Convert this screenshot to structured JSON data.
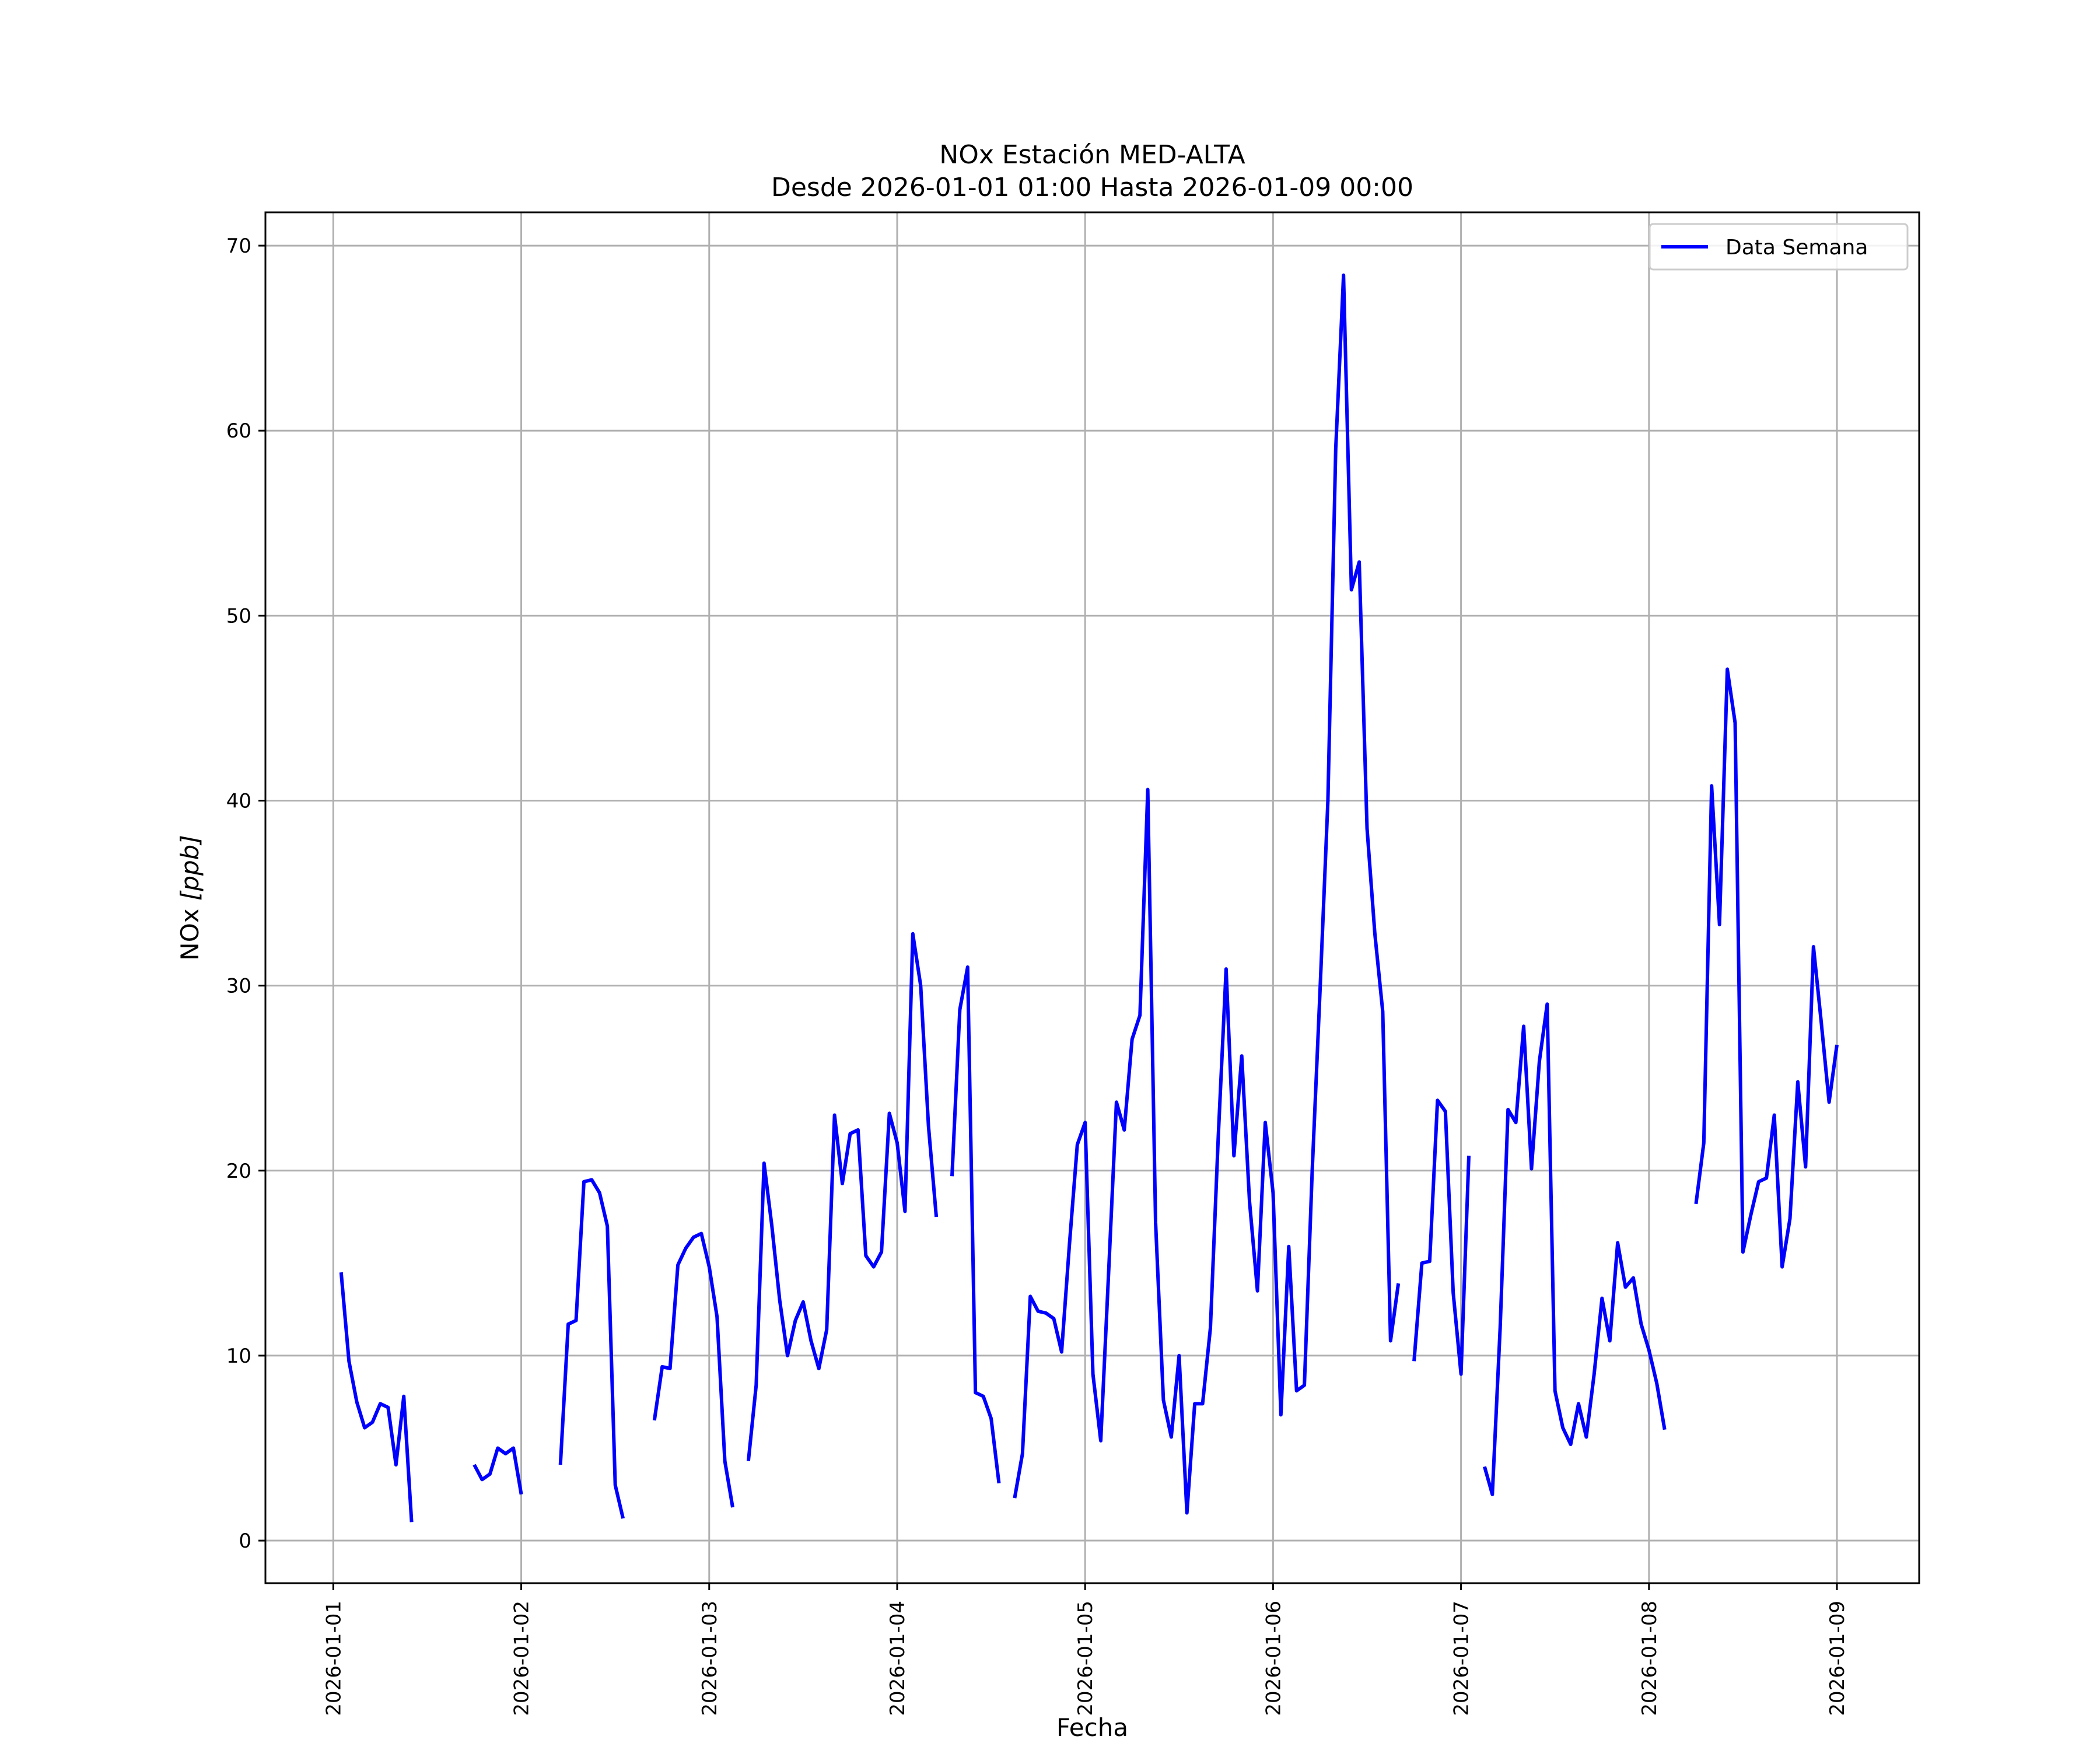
{
  "chart_data": {
    "type": "line",
    "title": "NOx Estación MED-ALTA",
    "subtitle": "Desde 2026-01-01 01:00 Hasta 2026-01-09 00:00",
    "xlabel": "Fecha",
    "ylabel_main": "NOx ",
    "ylabel_unit": "[ppb]",
    "x_ticks": [
      "2026-01-01",
      "2026-01-02",
      "2026-01-03",
      "2026-01-04",
      "2026-01-05",
      "2026-01-06",
      "2026-01-07",
      "2026-01-08",
      "2026-01-09"
    ],
    "y_ticks": [
      "0",
      "10",
      "20",
      "30",
      "40",
      "50",
      "60",
      "70"
    ],
    "xlim": [
      "2025-12-31 15:20",
      "2026-01-09 10:30"
    ],
    "ylim": [
      -2.3,
      71.8
    ],
    "grid": true,
    "legend_position": "top-right",
    "series": [
      {
        "name": "Data Semana",
        "color": "#0000ff",
        "points": [
          [
            "2026-01-01 01:00",
            14.5
          ],
          [
            "2026-01-01 02:00",
            9.7
          ],
          [
            "2026-01-01 03:00",
            7.5
          ],
          [
            "2026-01-01 04:00",
            6.1
          ],
          [
            "2026-01-01 05:00",
            6.4
          ],
          [
            "2026-01-01 06:00",
            7.4
          ],
          [
            "2026-01-01 07:00",
            7.2
          ],
          [
            "2026-01-01 08:00",
            4.1
          ],
          [
            "2026-01-01 09:00",
            7.8
          ],
          [
            "2026-01-01 10:00",
            1.0
          ],
          [
            "2026-01-01 18:00",
            4.1
          ],
          [
            "2026-01-01 19:00",
            3.3
          ],
          [
            "2026-01-01 20:00",
            3.6
          ],
          [
            "2026-01-01 21:00",
            5.0
          ],
          [
            "2026-01-01 22:00",
            4.7
          ],
          [
            "2026-01-01 23:00",
            5.0
          ],
          [
            "2026-01-02 00:00",
            2.5
          ],
          [
            "2026-01-02 05:00",
            4.1
          ],
          [
            "2026-01-02 06:00",
            11.7
          ],
          [
            "2026-01-02 07:00",
            11.9
          ],
          [
            "2026-01-02 08:00",
            19.4
          ],
          [
            "2026-01-02 09:00",
            19.5
          ],
          [
            "2026-01-02 10:00",
            18.8
          ],
          [
            "2026-01-02 11:00",
            17.0
          ],
          [
            "2026-01-02 12:00",
            3.0
          ],
          [
            "2026-01-02 13:00",
            1.2
          ],
          [
            "2026-01-02 17:00",
            6.5
          ],
          [
            "2026-01-02 18:00",
            9.4
          ],
          [
            "2026-01-02 19:00",
            9.3
          ],
          [
            "2026-01-02 20:00",
            14.9
          ],
          [
            "2026-01-02 21:00",
            15.8
          ],
          [
            "2026-01-02 22:00",
            16.4
          ],
          [
            "2026-01-02 23:00",
            16.6
          ],
          [
            "2026-01-03 00:00",
            14.8
          ],
          [
            "2026-01-03 01:00",
            12.1
          ],
          [
            "2026-01-03 02:00",
            4.3
          ],
          [
            "2026-01-03 03:00",
            1.8
          ],
          [
            "2026-01-03 05:00",
            4.3
          ],
          [
            "2026-01-03 06:00",
            8.4
          ],
          [
            "2026-01-03 07:00",
            20.4
          ],
          [
            "2026-01-03 08:00",
            17.0
          ],
          [
            "2026-01-03 09:00",
            13.0
          ],
          [
            "2026-01-03 10:00",
            10.0
          ],
          [
            "2026-01-03 11:00",
            11.9
          ],
          [
            "2026-01-03 12:00",
            12.9
          ],
          [
            "2026-01-03 13:00",
            10.8
          ],
          [
            "2026-01-03 14:00",
            9.3
          ],
          [
            "2026-01-03 15:00",
            11.4
          ],
          [
            "2026-01-03 16:00",
            23.0
          ],
          [
            "2026-01-03 17:00",
            19.3
          ],
          [
            "2026-01-03 18:00",
            22.0
          ],
          [
            "2026-01-03 19:00",
            22.2
          ],
          [
            "2026-01-03 20:00",
            15.4
          ],
          [
            "2026-01-03 21:00",
            14.8
          ],
          [
            "2026-01-03 22:00",
            15.6
          ],
          [
            "2026-01-03 23:00",
            23.1
          ],
          [
            "2026-01-04 00:00",
            21.5
          ],
          [
            "2026-01-04 01:00",
            17.8
          ],
          [
            "2026-01-04 02:00",
            32.8
          ],
          [
            "2026-01-04 03:00",
            30.0
          ],
          [
            "2026-01-04 04:00",
            22.4
          ],
          [
            "2026-01-04 05:00",
            17.5
          ],
          [
            "2026-01-04 07:00",
            19.7
          ],
          [
            "2026-01-04 08:00",
            28.7
          ],
          [
            "2026-01-04 09:00",
            31.0
          ],
          [
            "2026-01-04 10:00",
            8.0
          ],
          [
            "2026-01-04 11:00",
            7.8
          ],
          [
            "2026-01-04 12:00",
            6.6
          ],
          [
            "2026-01-04 13:00",
            3.1
          ],
          [
            "2026-01-04 15:00",
            2.3
          ],
          [
            "2026-01-04 16:00",
            4.7
          ],
          [
            "2026-01-04 17:00",
            13.2
          ],
          [
            "2026-01-04 18:00",
            12.4
          ],
          [
            "2026-01-04 19:00",
            12.3
          ],
          [
            "2026-01-04 20:00",
            12.0
          ],
          [
            "2026-01-04 21:00",
            10.2
          ],
          [
            "2026-01-04 22:00",
            16.0
          ],
          [
            "2026-01-04 23:00",
            21.4
          ],
          [
            "2026-01-05 00:00",
            22.6
          ],
          [
            "2026-01-05 01:00",
            9.0
          ],
          [
            "2026-01-05 02:00",
            5.4
          ],
          [
            "2026-01-05 03:00",
            14.5
          ],
          [
            "2026-01-05 04:00",
            23.7
          ],
          [
            "2026-01-05 05:00",
            22.2
          ],
          [
            "2026-01-05 06:00",
            27.1
          ],
          [
            "2026-01-05 07:00",
            28.4
          ],
          [
            "2026-01-05 08:00",
            40.6
          ],
          [
            "2026-01-05 09:00",
            17.2
          ],
          [
            "2026-01-05 10:00",
            7.6
          ],
          [
            "2026-01-05 11:00",
            5.6
          ],
          [
            "2026-01-05 12:00",
            10.0
          ],
          [
            "2026-01-05 13:00",
            1.5
          ],
          [
            "2026-01-05 14:00",
            7.4
          ],
          [
            "2026-01-05 15:00",
            7.4
          ],
          [
            "2026-01-05 16:00",
            11.5
          ],
          [
            "2026-01-05 17:00",
            21.8
          ],
          [
            "2026-01-05 18:00",
            30.9
          ],
          [
            "2026-01-05 19:00",
            20.8
          ],
          [
            "2026-01-05 20:00",
            26.2
          ],
          [
            "2026-01-05 21:00",
            18.3
          ],
          [
            "2026-01-05 22:00",
            13.5
          ],
          [
            "2026-01-05 23:00",
            22.6
          ],
          [
            "2026-01-06 00:00",
            18.8
          ],
          [
            "2026-01-06 01:00",
            6.8
          ],
          [
            "2026-01-06 02:00",
            15.9
          ],
          [
            "2026-01-06 03:00",
            8.1
          ],
          [
            "2026-01-06 04:00",
            8.4
          ],
          [
            "2026-01-06 05:00",
            20.0
          ],
          [
            "2026-01-06 06:00",
            29.8
          ],
          [
            "2026-01-06 07:00",
            40.0
          ],
          [
            "2026-01-06 08:00",
            59.0
          ],
          [
            "2026-01-06 09:00",
            68.4
          ],
          [
            "2026-01-06 10:00",
            51.4
          ],
          [
            "2026-01-06 11:00",
            52.9
          ],
          [
            "2026-01-06 12:00",
            38.5
          ],
          [
            "2026-01-06 13:00",
            32.8
          ],
          [
            "2026-01-06 14:00",
            28.6
          ],
          [
            "2026-01-06 15:00",
            10.8
          ],
          [
            "2026-01-06 16:00",
            13.9
          ],
          [
            "2026-01-06 18:00",
            9.7
          ],
          [
            "2026-01-06 19:00",
            15.0
          ],
          [
            "2026-01-06 20:00",
            15.1
          ],
          [
            "2026-01-06 21:00",
            23.8
          ],
          [
            "2026-01-06 22:00",
            23.2
          ],
          [
            "2026-01-06 23:00",
            13.4
          ],
          [
            "2026-01-07 00:00",
            9.0
          ],
          [
            "2026-01-07 01:00",
            20.8
          ],
          [
            "2026-01-07 03:00",
            4.0
          ],
          [
            "2026-01-07 04:00",
            2.5
          ],
          [
            "2026-01-07 05:00",
            11.5
          ],
          [
            "2026-01-07 06:00",
            23.3
          ],
          [
            "2026-01-07 07:00",
            22.6
          ],
          [
            "2026-01-07 08:00",
            27.8
          ],
          [
            "2026-01-07 09:00",
            20.1
          ],
          [
            "2026-01-07 10:00",
            25.9
          ],
          [
            "2026-01-07 11:00",
            29.0
          ],
          [
            "2026-01-07 12:00",
            8.1
          ],
          [
            "2026-01-07 13:00",
            6.1
          ],
          [
            "2026-01-07 14:00",
            5.2
          ],
          [
            "2026-01-07 15:00",
            7.4
          ],
          [
            "2026-01-07 16:00",
            5.6
          ],
          [
            "2026-01-07 17:00",
            9.0
          ],
          [
            "2026-01-07 18:00",
            13.1
          ],
          [
            "2026-01-07 19:00",
            10.8
          ],
          [
            "2026-01-07 20:00",
            16.1
          ],
          [
            "2026-01-07 21:00",
            13.7
          ],
          [
            "2026-01-07 22:00",
            14.2
          ],
          [
            "2026-01-07 23:00",
            11.7
          ],
          [
            "2026-01-08 00:00",
            10.3
          ],
          [
            "2026-01-08 01:00",
            8.5
          ],
          [
            "2026-01-08 02:00",
            6.0
          ],
          [
            "2026-01-08 06:00",
            18.2
          ],
          [
            "2026-01-08 07:00",
            21.5
          ],
          [
            "2026-01-08 08:00",
            40.8
          ],
          [
            "2026-01-08 09:00",
            33.3
          ],
          [
            "2026-01-08 10:00",
            47.1
          ],
          [
            "2026-01-08 11:00",
            44.2
          ],
          [
            "2026-01-08 12:00",
            15.6
          ],
          [
            "2026-01-08 13:00",
            17.6
          ],
          [
            "2026-01-08 14:00",
            19.4
          ],
          [
            "2026-01-08 15:00",
            19.6
          ],
          [
            "2026-01-08 16:00",
            23.0
          ],
          [
            "2026-01-08 17:00",
            14.8
          ],
          [
            "2026-01-08 18:00",
            17.4
          ],
          [
            "2026-01-08 19:00",
            24.8
          ],
          [
            "2026-01-08 20:00",
            20.2
          ],
          [
            "2026-01-08 21:00",
            32.1
          ],
          [
            "2026-01-08 22:00",
            28.0
          ],
          [
            "2026-01-08 23:00",
            23.7
          ],
          [
            "2026-01-09 00:00",
            26.8
          ]
        ]
      }
    ]
  }
}
